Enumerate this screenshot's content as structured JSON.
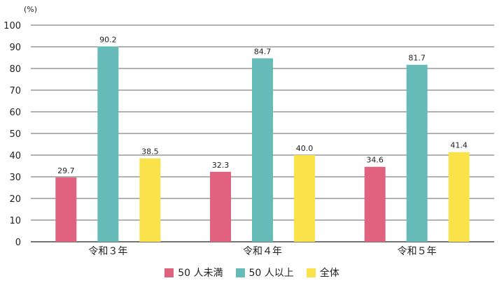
{
  "chart_data": {
    "type": "bar",
    "unit_label": "(%)",
    "categories": [
      "令和３年",
      "令和４年",
      "令和５年"
    ],
    "series": [
      {
        "name": "50 人未満",
        "color": "#e0627e",
        "values": [
          29.7,
          32.3,
          34.6
        ]
      },
      {
        "name": "50 人以上",
        "color": "#66bbb9",
        "values": [
          90.2,
          84.7,
          81.7
        ]
      },
      {
        "name": "全体",
        "color": "#fae24b",
        "values": [
          38.5,
          40.0,
          41.4
        ]
      }
    ],
    "ylim": [
      0,
      100
    ],
    "yticks": [
      0,
      10,
      20,
      30,
      40,
      50,
      60,
      70,
      80,
      90,
      100
    ],
    "grid": true,
    "legend_position": "bottom"
  }
}
